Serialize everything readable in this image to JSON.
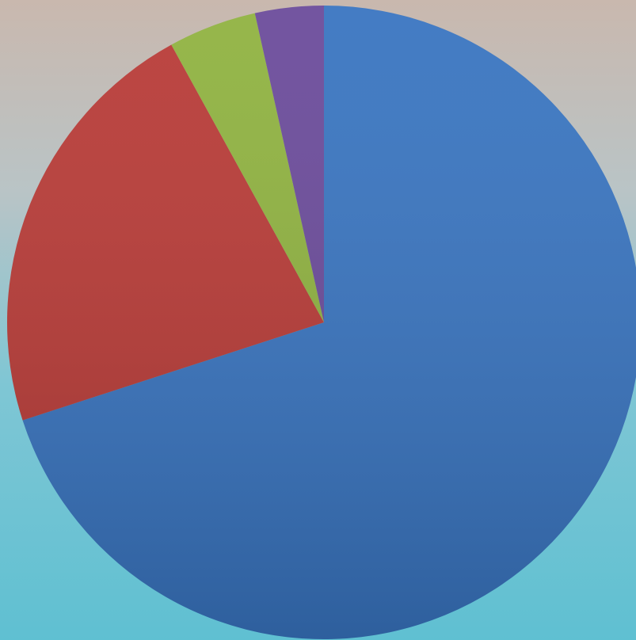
{
  "chart_data": {
    "type": "pie",
    "values": [
      70,
      22,
      4.5,
      3.5
    ],
    "colors": [
      "#3874c0",
      "#b83a36",
      "#8fb23f",
      "#6a4a9a"
    ]
  }
}
